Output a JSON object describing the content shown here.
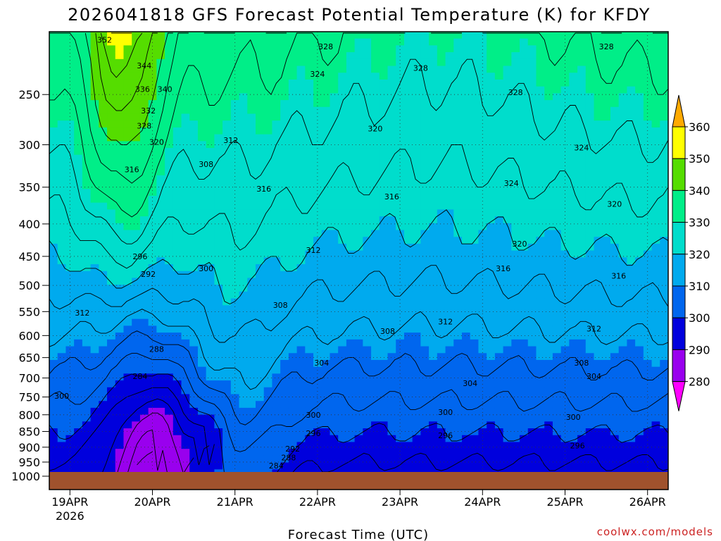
{
  "chart_data": {
    "type": "heatmap",
    "title": "2026041818 GFS Forecast Potential Temperature (K) for KFDY",
    "xlabel": "Forecast Time (UTC)",
    "ylabel": "",
    "y_axis_unit": "hPa",
    "y_scale": "log",
    "ylim": [
      1000,
      200
    ],
    "y_ticks": [
      "250",
      "300",
      "350",
      "400",
      "450",
      "500",
      "550",
      "600",
      "650",
      "700",
      "750",
      "800",
      "850",
      "900",
      "950",
      "1000"
    ],
    "x_ticks": [
      {
        "label": "19APR",
        "sub": "2026",
        "day": 0
      },
      {
        "label": "20APR",
        "sub": "",
        "day": 1
      },
      {
        "label": "21APR",
        "sub": "",
        "day": 2
      },
      {
        "label": "22APR",
        "sub": "",
        "day": 3
      },
      {
        "label": "23APR",
        "sub": "",
        "day": 4
      },
      {
        "label": "24APR",
        "sub": "",
        "day": 5
      },
      {
        "label": "25APR",
        "sub": "",
        "day": 6
      },
      {
        "label": "26APR",
        "sub": "",
        "day": 7
      }
    ],
    "x_range_days": [
      -0.25,
      7.25
    ],
    "grid": true,
    "colorbar": {
      "levels": [
        280,
        290,
        300,
        310,
        320,
        330,
        340,
        350,
        360
      ],
      "colors": [
        "#ff00ff",
        "#9900ee",
        "#0000dd",
        "#0066ee",
        "#00aaee",
        "#00ddcc",
        "#00ee88",
        "#55dd00",
        "#ffff00",
        "#ffaa00"
      ],
      "labels": [
        "360",
        "350",
        "340",
        "330",
        "320",
        "310",
        "300",
        "290",
        "280"
      ]
    },
    "contour_labels": [
      {
        "text": "352",
        "day": 0.42,
        "p": 205
      },
      {
        "text": "344",
        "day": 0.9,
        "p": 225
      },
      {
        "text": "336",
        "day": 0.88,
        "p": 245
      },
      {
        "text": "340",
        "day": 1.15,
        "p": 245
      },
      {
        "text": "332",
        "day": 0.95,
        "p": 265
      },
      {
        "text": "328",
        "day": 0.9,
        "p": 280
      },
      {
        "text": "320",
        "day": 1.05,
        "p": 297
      },
      {
        "text": "316",
        "day": 0.75,
        "p": 328
      },
      {
        "text": "312",
        "day": 1.95,
        "p": 295
      },
      {
        "text": "308",
        "day": 1.65,
        "p": 322
      },
      {
        "text": "316",
        "day": 2.35,
        "p": 352
      },
      {
        "text": "328",
        "day": 3.1,
        "p": 210
      },
      {
        "text": "324",
        "day": 3.0,
        "p": 232
      },
      {
        "text": "320",
        "day": 3.7,
        "p": 283
      },
      {
        "text": "316",
        "day": 3.9,
        "p": 362
      },
      {
        "text": "328",
        "day": 4.25,
        "p": 227
      },
      {
        "text": "328",
        "day": 5.4,
        "p": 248
      },
      {
        "text": "328",
        "day": 6.5,
        "p": 210
      },
      {
        "text": "324",
        "day": 6.2,
        "p": 303
      },
      {
        "text": "324",
        "day": 5.35,
        "p": 345
      },
      {
        "text": "320",
        "day": 6.6,
        "p": 372
      },
      {
        "text": "320",
        "day": 5.45,
        "p": 430
      },
      {
        "text": "316",
        "day": 5.25,
        "p": 470
      },
      {
        "text": "316",
        "day": 6.65,
        "p": 483
      },
      {
        "text": "312",
        "day": 0.15,
        "p": 552
      },
      {
        "text": "296",
        "day": 0.85,
        "p": 450
      },
      {
        "text": "292",
        "day": 0.95,
        "p": 480
      },
      {
        "text": "300",
        "day": 1.65,
        "p": 470
      },
      {
        "text": "312",
        "day": 2.95,
        "p": 440
      },
      {
        "text": "308",
        "day": 2.55,
        "p": 537
      },
      {
        "text": "288",
        "day": 1.05,
        "p": 630
      },
      {
        "text": "284",
        "day": 0.85,
        "p": 695
      },
      {
        "text": "304",
        "day": 3.05,
        "p": 662
      },
      {
        "text": "308",
        "day": 3.85,
        "p": 590
      },
      {
        "text": "312",
        "day": 4.55,
        "p": 570
      },
      {
        "text": "312",
        "day": 6.35,
        "p": 585
      },
      {
        "text": "308",
        "day": 6.2,
        "p": 662
      },
      {
        "text": "304",
        "day": 6.35,
        "p": 695
      },
      {
        "text": "304",
        "day": 4.85,
        "p": 713
      },
      {
        "text": "300",
        "day": -0.1,
        "p": 747
      },
      {
        "text": "300",
        "day": 2.95,
        "p": 800
      },
      {
        "text": "300",
        "day": 4.55,
        "p": 792
      },
      {
        "text": "300",
        "day": 6.1,
        "p": 807
      },
      {
        "text": "296",
        "day": 2.95,
        "p": 855
      },
      {
        "text": "296",
        "day": 4.55,
        "p": 862
      },
      {
        "text": "296",
        "day": 6.15,
        "p": 895
      },
      {
        "text": "292",
        "day": 2.7,
        "p": 905
      },
      {
        "text": "288",
        "day": 2.65,
        "p": 935
      },
      {
        "text": "284",
        "day": 2.5,
        "p": 962
      }
    ]
  },
  "credit": "coolwx.com/models"
}
